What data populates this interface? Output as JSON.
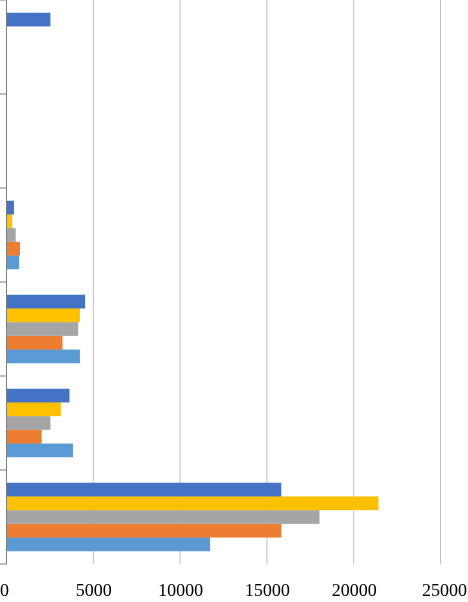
{
  "colors": {
    "gridline": "#bfbfbf",
    "axis": "#7f7f7f",
    "palette": [
      "#5b9bd5",
      "#ed7d31",
      "#a5a5a5",
      "#ffc000",
      "#4472c4"
    ]
  },
  "chart_data": {
    "type": "bar",
    "orientation": "horizontal",
    "title": "",
    "xlabel": "",
    "ylabel": "",
    "xlim": [
      0,
      25000
    ],
    "x_ticks": [
      "0",
      "5000",
      "10000",
      "15000",
      "20000",
      "25000"
    ],
    "grid": true,
    "legend": "none",
    "groups": [
      {
        "values": [
          11700,
          15800,
          18000,
          21400,
          15800
        ]
      },
      {
        "values": [
          3800,
          2000,
          2500,
          3100,
          3600
        ]
      },
      {
        "values": [
          4200,
          3200,
          4100,
          4200,
          4500
        ]
      },
      {
        "values": [
          700,
          750,
          500,
          300,
          400
        ]
      },
      {
        "values": [
          null,
          null,
          null,
          null,
          null
        ]
      },
      {
        "values": [
          null,
          null,
          null,
          null,
          2500
        ]
      }
    ]
  }
}
